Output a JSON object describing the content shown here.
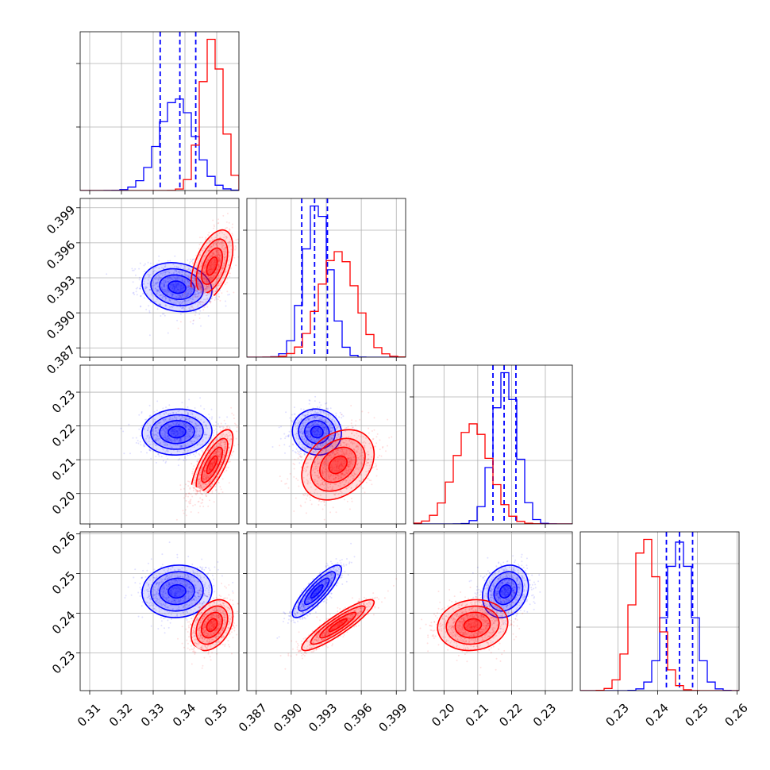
{
  "chart_data": {
    "type": "corner",
    "colors": {
      "series_a": "#0000ff",
      "series_b": "#ff0000",
      "grid": "#b0b0b0"
    },
    "grid": true,
    "parameters": [
      {
        "id": "p0",
        "range": [
          0.307,
          0.357
        ],
        "ticks": [
          "0.31",
          "0.32",
          "0.33",
          "0.34",
          "0.35"
        ]
      },
      {
        "id": "p1",
        "range": [
          0.3862,
          0.3998
        ],
        "ticks": [
          "0.387",
          "0.390",
          "0.393",
          "0.396",
          "0.399"
        ]
      },
      {
        "id": "p2",
        "range": [
          0.191,
          0.238
        ],
        "ticks": [
          "0.20",
          "0.21",
          "0.22",
          "0.23"
        ]
      },
      {
        "id": "p3",
        "range": [
          0.2205,
          0.2605
        ],
        "ticks": [
          "0.23",
          "0.24",
          "0.25",
          "0.26"
        ]
      }
    ],
    "series": [
      {
        "key": "series_a",
        "means": [
          0.3375,
          0.3922,
          0.2182,
          0.2455
        ],
        "sigmas": [
          0.0055,
          0.00105,
          0.0034,
          0.0033
        ],
        "quantiles": [
          [
            0.3322,
            0.3384,
            0.3434
          ],
          [
            0.3909,
            0.392,
            0.3931
          ],
          [
            0.2145,
            0.2178,
            0.2213
          ],
          [
            0.2422,
            0.2455,
            0.2488
          ]
        ],
        "correlations": {
          "1-0": -0.15,
          "2-0": 0.05,
          "2-1": -0.05,
          "3-0": 0.05,
          "3-1": 0.85,
          "3-2": 0.2
        }
      },
      {
        "key": "series_b",
        "means": [
          0.3485,
          0.394,
          0.2085,
          0.237
        ],
        "sigmas": [
          0.0033,
          0.00155,
          0.0052,
          0.0032
        ],
        "correlations": {
          "1-0": 0.5,
          "2-0": 0.75,
          "2-1": 0.3,
          "3-0": 0.35,
          "3-1": 0.9,
          "3-2": 0.1
        }
      }
    ]
  }
}
